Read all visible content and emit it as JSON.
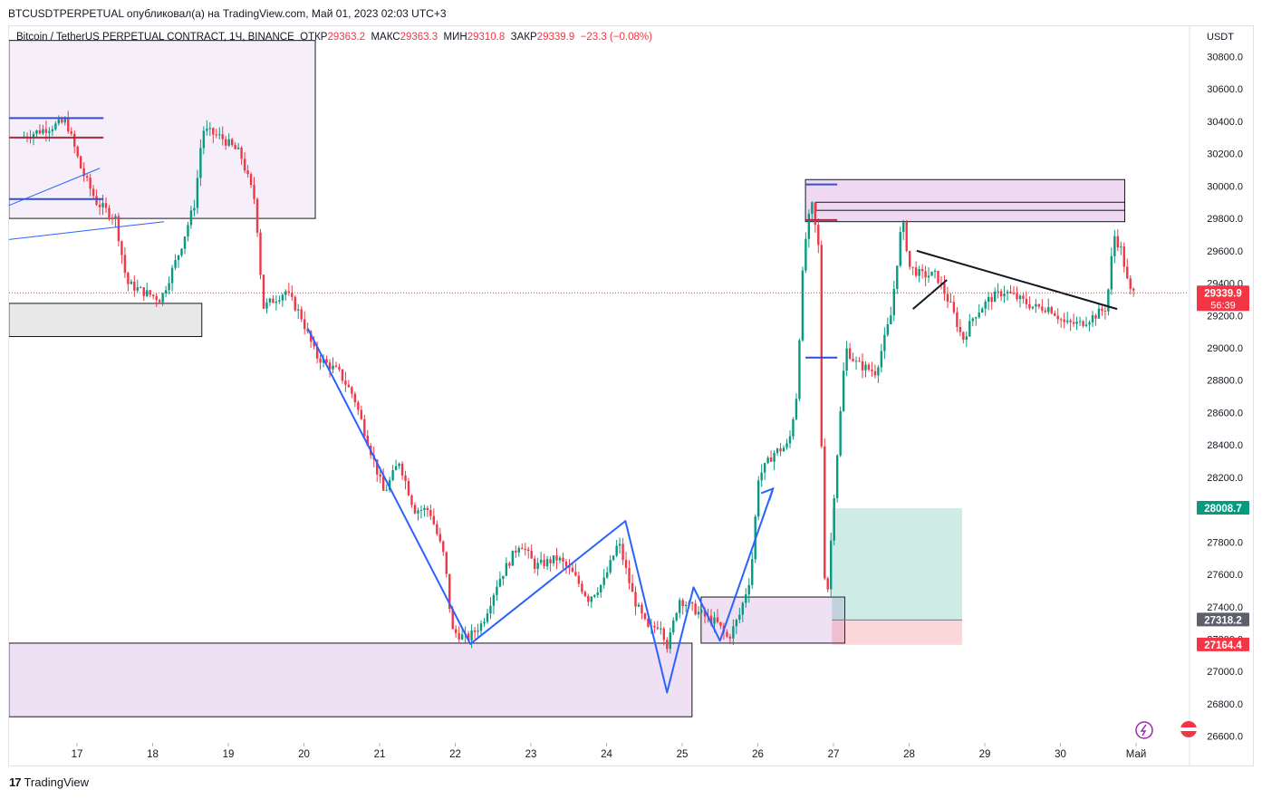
{
  "header": {
    "symbol": "BTCUSDTPERPETUAL",
    "published_text": "опубликовал(а) на TradingView.com, Май 01, 2023 02:03 UTC+3"
  },
  "legend": {
    "instrument": "Bitcoin / TetherUS PERPETUAL CONTRACT, 1Ч, BINANCE",
    "open_label": "ОТКР",
    "open": "29363.2",
    "high_label": "МАКС",
    "high": "29363.3",
    "low_label": "МИН",
    "low": "29310.8",
    "close_label": "ЗАКР",
    "close": "29339.9",
    "change": "−23.3 (−0.08%)"
  },
  "footer": {
    "brand": "TradingView"
  },
  "chart_data": {
    "type": "candlestick",
    "currency": "USDT",
    "ylim": [
      26550,
      30900
    ],
    "y_ticks": [
      26600,
      26800,
      27000,
      27200,
      27400,
      27600,
      27800,
      28000,
      28200,
      28400,
      28600,
      28800,
      29000,
      29200,
      29400,
      29600,
      29800,
      30000,
      30200,
      30400,
      30600,
      30800
    ],
    "y_tick_labels": [
      "26600.0",
      "26800.0",
      "27000.0",
      "27200.0",
      "27400.0",
      "27600.0",
      "27800.0",
      "28000.0",
      "28200.0",
      "28400.0",
      "28600.0",
      "28800.0",
      "29000.0",
      "29200.0",
      "29400.0",
      "29600.0",
      "29800.0",
      "30000.0",
      "30200.0",
      "30400.0",
      "30600.0",
      "30800.0"
    ],
    "x_ticks": [
      {
        "label": "17",
        "day": 17
      },
      {
        "label": "18",
        "day": 18
      },
      {
        "label": "19",
        "day": 19
      },
      {
        "label": "20",
        "day": 20
      },
      {
        "label": "21",
        "day": 21
      },
      {
        "label": "22",
        "day": 22
      },
      {
        "label": "23",
        "day": 23
      },
      {
        "label": "24",
        "day": 24
      },
      {
        "label": "25",
        "day": 25
      },
      {
        "label": "26",
        "day": 26
      },
      {
        "label": "27",
        "day": 27
      },
      {
        "label": "28",
        "day": 28
      },
      {
        "label": "29",
        "day": 29
      },
      {
        "label": "30",
        "day": 30
      },
      {
        "label": "Май",
        "day": 31
      }
    ],
    "xlim_days": [
      16.1,
      32.1
    ],
    "price_keypoints": [
      [
        16.3,
        30300
      ],
      [
        16.6,
        30350
      ],
      [
        16.9,
        30400
      ],
      [
        17.1,
        30100
      ],
      [
        17.3,
        29900
      ],
      [
        17.55,
        29800
      ],
      [
        17.7,
        29400
      ],
      [
        17.9,
        29350
      ],
      [
        18.15,
        29300
      ],
      [
        18.4,
        29600
      ],
      [
        18.6,
        29900
      ],
      [
        18.7,
        30350
      ],
      [
        18.95,
        30300
      ],
      [
        19.2,
        30200
      ],
      [
        19.4,
        29900
      ],
      [
        19.5,
        29250
      ],
      [
        19.8,
        29350
      ],
      [
        20.0,
        29200
      ],
      [
        20.2,
        28950
      ],
      [
        20.5,
        28850
      ],
      [
        20.7,
        28700
      ],
      [
        20.9,
        28400
      ],
      [
        21.1,
        28100
      ],
      [
        21.3,
        28300
      ],
      [
        21.5,
        28000
      ],
      [
        21.7,
        28000
      ],
      [
        21.9,
        27700
      ],
      [
        22.0,
        27250
      ],
      [
        22.2,
        27200
      ],
      [
        22.4,
        27300
      ],
      [
        22.6,
        27550
      ],
      [
        22.9,
        27800
      ],
      [
        23.1,
        27650
      ],
      [
        23.4,
        27700
      ],
      [
        23.6,
        27600
      ],
      [
        23.8,
        27450
      ],
      [
        24.0,
        27550
      ],
      [
        24.2,
        27800
      ],
      [
        24.4,
        27450
      ],
      [
        24.6,
        27250
      ],
      [
        24.75,
        27300
      ],
      [
        24.85,
        27150
      ],
      [
        25.0,
        27450
      ],
      [
        25.15,
        27400
      ],
      [
        25.3,
        27350
      ],
      [
        25.5,
        27300
      ],
      [
        25.65,
        27200
      ],
      [
        25.8,
        27350
      ],
      [
        25.95,
        27600
      ],
      [
        26.05,
        28200
      ],
      [
        26.25,
        28350
      ],
      [
        26.45,
        28400
      ],
      [
        26.55,
        28700
      ],
      [
        26.65,
        29600
      ],
      [
        26.75,
        29900
      ],
      [
        26.85,
        29600
      ],
      [
        26.9,
        27800
      ],
      [
        26.95,
        27400
      ],
      [
        27.05,
        28100
      ],
      [
        27.2,
        29000
      ],
      [
        27.35,
        28900
      ],
      [
        27.6,
        28850
      ],
      [
        27.8,
        29200
      ],
      [
        27.95,
        29800
      ],
      [
        28.05,
        29500
      ],
      [
        28.2,
        29450
      ],
      [
        28.4,
        29450
      ],
      [
        28.6,
        29250
      ],
      [
        28.75,
        29050
      ],
      [
        28.9,
        29200
      ],
      [
        29.1,
        29300
      ],
      [
        29.3,
        29350
      ],
      [
        29.5,
        29300
      ],
      [
        29.7,
        29250
      ],
      [
        29.9,
        29250
      ],
      [
        30.1,
        29150
      ],
      [
        30.3,
        29150
      ],
      [
        30.5,
        29200
      ],
      [
        30.65,
        29250
      ],
      [
        30.75,
        29700
      ],
      [
        30.85,
        29600
      ],
      [
        30.95,
        29350
      ],
      [
        31.0,
        29340
      ]
    ],
    "overlays": {
      "zones": [
        {
          "d1": 16.1,
          "d2": 20.15,
          "top": 30900,
          "bot": 29800,
          "fill": "#f6eef8"
        },
        {
          "d1": 16.1,
          "d2": 18.65,
          "top": 29275,
          "bot": 29070,
          "fill": "#e8e8e8"
        },
        {
          "d1": 16.1,
          "d2": 25.13,
          "top": 27175,
          "bot": 26720,
          "fill": "#efe0f3"
        },
        {
          "d1": 25.25,
          "d2": 27.15,
          "top": 27460,
          "bot": 27175,
          "fill": "#efe0f3"
        },
        {
          "d1": 26.63,
          "d2": 30.85,
          "top": 30040,
          "bot": 29780,
          "fill": "#efd8f2"
        }
      ],
      "position": {
        "d1": 26.98,
        "d2": 28.7,
        "entry": 27318.2,
        "target": 28008.7,
        "stop": 27164.4
      },
      "zigzag": [
        [
          20.05,
          29120
        ],
        [
          22.2,
          27170
        ],
        [
          24.25,
          27930
        ],
        [
          24.8,
          26870
        ],
        [
          25.15,
          27520
        ],
        [
          25.5,
          27190
        ],
        [
          26.2,
          28130
        ]
      ],
      "wedge": [
        [
          28.1,
          29600
        ],
        [
          30.75,
          29240
        ]
      ],
      "wedge_lower": [
        [
          28.05,
          29240
        ],
        [
          28.5,
          29420
        ]
      ],
      "hlines": [
        {
          "d1": 16.1,
          "d2": 17.35,
          "y": 30420,
          "color": "#2f4fd6"
        },
        {
          "d1": 16.1,
          "d2": 17.35,
          "y": 30300,
          "color": "#b0283c"
        },
        {
          "d1": 16.1,
          "d2": 17.35,
          "y": 29920,
          "color": "#2f4fd6"
        },
        {
          "d1": 26.63,
          "d2": 27.05,
          "y": 30010,
          "color": "#2f4fd6"
        },
        {
          "d1": 26.63,
          "d2": 27.05,
          "y": 29790,
          "color": "#b0283c"
        },
        {
          "d1": 26.63,
          "d2": 27.05,
          "y": 28940,
          "color": "#2f4fd6"
        }
      ]
    },
    "current_price": {
      "value": "29339.9",
      "countdown": "56:39",
      "color": "#f23645"
    },
    "price_badges": [
      {
        "value": "28008.7",
        "color": "#089981"
      },
      {
        "value": "27318.2",
        "color": "#5d606b"
      },
      {
        "value": "27164.4",
        "color": "#f23645"
      }
    ],
    "colors": {
      "up": "#089981",
      "down": "#f23645",
      "zigzag": "#2962ff"
    }
  }
}
